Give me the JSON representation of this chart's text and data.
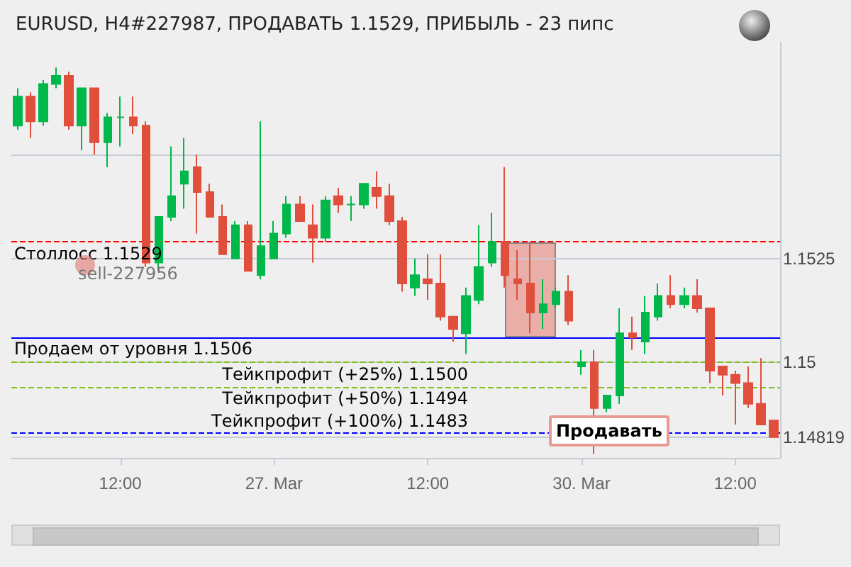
{
  "chart_data": {
    "type": "candlestick",
    "title": "EURUSD, H4#227987, ПРОДАВАТЬ 1.1529, ПРИБЫЛЬ - 23 пипс",
    "categories": [
      null,
      null,
      null,
      null,
      null,
      null,
      null,
      null,
      "12:00",
      null,
      null,
      null,
      null,
      null,
      null,
      null,
      null,
      null,
      null,
      null,
      "27. Mar",
      null,
      null,
      null,
      null,
      null,
      null,
      null,
      null,
      null,
      null,
      null,
      "12:00",
      null,
      null,
      null,
      null,
      null,
      null,
      null,
      null,
      null,
      null,
      null,
      "30. Mar",
      null,
      null,
      null,
      null,
      null,
      null,
      null,
      null,
      null,
      null,
      null,
      "12:00",
      null,
      null,
      null
    ],
    "ohlc": [
      [
        1.1557,
        1.1566,
        1.1556,
        1.1564
      ],
      [
        1.1564,
        1.1565,
        1.1554,
        1.1558
      ],
      [
        1.1558,
        1.1568,
        1.1557,
        1.1567
      ],
      [
        1.1567,
        1.1571,
        1.1566,
        1.1569
      ],
      [
        1.1569,
        1.157,
        1.1556,
        1.1557
      ],
      [
        1.1557,
        1.1566,
        1.1551,
        1.1566
      ],
      [
        1.1566,
        1.1566,
        1.155,
        1.1553
      ],
      [
        1.1553,
        1.156,
        1.1547,
        1.1559
      ],
      [
        1.1559,
        1.1564,
        1.1552,
        1.1559
      ],
      [
        1.1559,
        1.1564,
        1.1555,
        1.1557
      ],
      [
        1.1557,
        1.1558,
        1.1523,
        1.1524
      ],
      [
        1.1524,
        1.1535,
        1.1522,
        1.1535
      ],
      [
        1.1535,
        1.1552,
        1.1534,
        1.154
      ],
      [
        1.1543,
        1.1554,
        1.1537,
        1.1546
      ],
      [
        1.1547,
        1.155,
        1.1531,
        1.1541
      ],
      [
        1.1541,
        1.1543,
        1.1535,
        1.1535
      ],
      [
        1.1535,
        1.1538,
        1.1526,
        1.1526
      ],
      [
        1.1525,
        1.1534,
        1.1525,
        1.1533
      ],
      [
        1.1533,
        1.1534,
        1.1522,
        1.1522
      ],
      [
        1.1521,
        1.1558,
        1.152,
        1.1528
      ],
      [
        1.1525,
        1.1534,
        1.1525,
        1.1531
      ],
      [
        1.1531,
        1.154,
        1.153,
        1.1538
      ],
      [
        1.1538,
        1.154,
        1.1534,
        1.1534
      ],
      [
        1.1533,
        1.1538,
        1.1524,
        1.153
      ],
      [
        1.153,
        1.154,
        1.1529,
        1.1539
      ],
      [
        1.154,
        1.1542,
        1.1536,
        1.1538
      ],
      [
        1.1538,
        1.154,
        1.1534,
        1.1538
      ],
      [
        1.1538,
        1.1543,
        1.1537,
        1.1543
      ],
      [
        1.1542,
        1.1546,
        1.1537,
        1.154
      ],
      [
        1.154,
        1.1543,
        1.1533,
        1.1534
      ],
      [
        1.1534,
        1.1535,
        1.1517,
        1.1519
      ],
      [
        1.1518,
        1.1525,
        1.1516,
        1.1521
      ],
      [
        1.152,
        1.1526,
        1.1515,
        1.1519
      ],
      [
        1.1519,
        1.1526,
        1.151,
        1.1511
      ],
      [
        1.1511,
        1.1511,
        1.1505,
        1.1508
      ],
      [
        1.1507,
        1.1518,
        1.1502,
        1.1516
      ],
      [
        1.1515,
        1.1533,
        1.1514,
        1.1523
      ],
      [
        1.1524,
        1.1536,
        1.1523,
        1.1529
      ],
      [
        1.1529,
        1.1547,
        1.1518,
        1.1521
      ],
      [
        1.152,
        1.1527,
        1.1515,
        1.1519
      ],
      [
        1.1519,
        1.1529,
        1.1507,
        1.1512
      ],
      [
        1.1512,
        1.152,
        1.1508,
        1.1514
      ],
      [
        1.1514,
        1.1518,
        1.1513,
        1.1517
      ],
      [
        1.1517,
        1.1521,
        1.1509,
        1.151
      ],
      [
        1.1499,
        1.1503,
        1.1497,
        1.15
      ],
      [
        1.15,
        1.1503,
        1.1478,
        1.1489
      ],
      [
        1.1489,
        1.1492,
        1.1488,
        1.1492
      ],
      [
        1.1492,
        1.1513,
        1.149,
        1.1507
      ],
      [
        1.1507,
        1.1511,
        1.1503,
        1.1506
      ],
      [
        1.1505,
        1.1516,
        1.1502,
        1.1512
      ],
      [
        1.1511,
        1.1519,
        1.151,
        1.1516
      ],
      [
        1.1516,
        1.1521,
        1.1513,
        1.1514
      ],
      [
        1.1514,
        1.1518,
        1.1513,
        1.1516
      ],
      [
        1.1516,
        1.152,
        1.1512,
        1.1513
      ],
      [
        1.1513,
        1.1513,
        1.1495,
        1.1498
      ],
      [
        1.1499,
        1.1499,
        1.1492,
        1.1497
      ],
      [
        1.1497,
        1.1498,
        1.1485,
        1.1495
      ],
      [
        1.1495,
        1.1499,
        1.1489,
        1.149
      ],
      [
        1.149,
        1.1501,
        1.1485,
        1.1485
      ],
      [
        1.1486,
        1.1486,
        1.1482,
        1.1482
      ]
    ],
    "colors": [
      "#00b84a",
      "#e04e3c",
      "#00b84a",
      "#00b84a",
      "#e04e3c",
      "#00b84a",
      "#e04e3c",
      "#00b84a",
      "#00b84a",
      "#e04e3c",
      "#e04e3c",
      "#00b84a",
      "#00b84a",
      "#00b84a",
      "#e04e3c",
      "#e04e3c",
      "#e04e3c",
      "#00b84a",
      "#e04e3c",
      "#00b84a",
      "#00b84a",
      "#00b84a",
      "#e04e3c",
      "#e04e3c",
      "#00b84a",
      "#e04e3c",
      "#00b84a",
      "#00b84a",
      "#e04e3c",
      "#e04e3c",
      "#e04e3c",
      "#00b84a",
      "#e04e3c",
      "#e04e3c",
      "#e04e3c",
      "#00b84a",
      "#00b84a",
      "#00b84a",
      "#e04e3c",
      "#e04e3c",
      "#e04e3c",
      "#00b84a",
      "#00b84a",
      "#e04e3c",
      "#00b84a",
      "#e04e3c",
      "#00b84a",
      "#00b84a",
      "#e04e3c",
      "#00b84a",
      "#00b84a",
      "#e04e3c",
      "#00b84a",
      "#e04e3c",
      "#e04e3c",
      "#e04e3c",
      "#e04e3c",
      "#e04e3c",
      "#e04e3c",
      "#e04e3c"
    ],
    "ylim": [
      1.1477,
      1.1577
    ],
    "yticks": [
      {
        "value": 1.14819,
        "label": "1.14819"
      },
      1.15,
      1.1525,
      {
        "value": 1.155,
        "label": null
      }
    ],
    "grid": "y",
    "ref_lines": [
      {
        "axis": "y",
        "value": 1.1529,
        "label": "Столлосс 1.1529",
        "color": "#ff0000",
        "line_style": "dashed"
      },
      {
        "axis": "y",
        "value": 1.1506,
        "label": "Продаем от уровня 1.1506",
        "color": "#0000ff",
        "line_style": "solid"
      },
      {
        "axis": "y",
        "value": 1.15,
        "label": "Тейкпрофит (+25%) 1.1500",
        "color": "#7fc31c",
        "line_style": "dashed"
      },
      {
        "axis": "y",
        "value": 1.1494,
        "label": "Тейкпрофит (+50%) 1.1494",
        "color": "#7fc31c",
        "line_style": "dashed"
      },
      {
        "axis": "y",
        "value": 1.1483,
        "label": "Тейкпрофит (+100%) 1.1483",
        "color": "#0000ff",
        "line_style": "dashed"
      }
    ],
    "annotations": [
      "sell-227956",
      "Продавать"
    ]
  }
}
